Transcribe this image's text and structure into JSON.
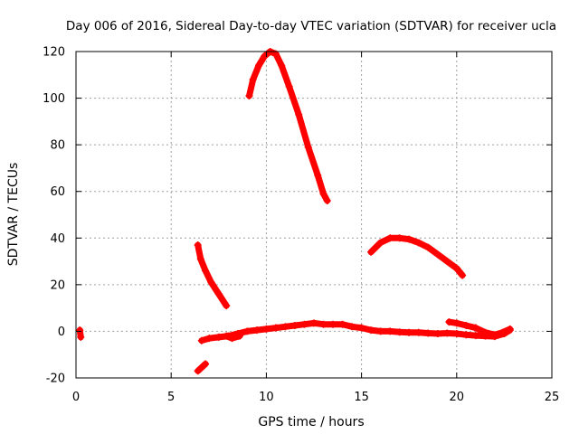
{
  "chart_data": {
    "type": "scatter",
    "title": "Day 006 of 2016, Sidereal Day-to-day VTEC variation (SDTVAR) for receiver ucla",
    "xlabel": "GPS time / hours",
    "ylabel": "SDTVAR / TECUs",
    "xlim": [
      0,
      25
    ],
    "ylim": [
      -20,
      120
    ],
    "xticks": [
      0,
      5,
      10,
      15,
      20,
      25
    ],
    "yticks": [
      -20,
      0,
      20,
      40,
      60,
      80,
      100,
      120
    ],
    "grid": true,
    "marker": "plus",
    "color": "#ff0000",
    "series": [
      {
        "x": [
          0.2,
          0.25
        ],
        "y": [
          0.5,
          -2.5
        ]
      },
      {
        "x": [
          6.4,
          6.55,
          6.8,
          7.1,
          7.5,
          7.9
        ],
        "y": [
          37,
          31,
          26,
          21,
          16,
          11
        ]
      },
      {
        "x": [
          6.4,
          6.6,
          6.8
        ],
        "y": [
          -17,
          -15.5,
          -14
        ]
      },
      {
        "x": [
          9.1,
          9.3,
          9.6,
          9.9,
          10.2,
          10.5,
          10.8,
          11.2,
          11.7,
          12.2,
          12.7,
          13.0,
          13.2
        ],
        "y": [
          101,
          108,
          114,
          118,
          120,
          119,
          114,
          105,
          93,
          79,
          67,
          59,
          56
        ]
      },
      {
        "x": [
          15.5,
          16.0,
          16.5,
          17.0,
          17.5,
          18.0,
          18.5,
          19.0,
          19.5,
          20.0,
          20.3
        ],
        "y": [
          34,
          38,
          40,
          40,
          39.5,
          38,
          36,
          33,
          30,
          27,
          24
        ]
      },
      {
        "x": [
          6.6,
          7.0,
          7.5,
          8.0,
          8.5,
          9.0,
          9.5,
          10.0,
          10.5,
          11.0,
          11.5,
          12.0,
          12.5,
          13.0,
          13.5,
          14.0,
          14.5,
          15.0,
          15.5,
          16.0,
          16.5,
          17.0,
          17.5,
          18.0,
          18.5,
          19.0,
          19.5,
          20.0,
          20.5,
          21.0,
          21.5,
          22.0,
          22.5,
          22.8
        ],
        "y": [
          -4,
          -3,
          -2.5,
          -2,
          -1,
          0,
          0.5,
          1,
          1.5,
          2,
          2.5,
          3,
          3.5,
          3,
          3,
          3,
          2,
          1.5,
          0.5,
          0,
          0,
          -0.3,
          -0.5,
          -0.5,
          -0.8,
          -1,
          -0.8,
          -1,
          -1.5,
          -1.8,
          -2,
          -2.2,
          -1,
          0.5
        ]
      },
      {
        "x": [
          7.9,
          8.2,
          8.6
        ],
        "y": [
          -2,
          -3,
          -2
        ]
      },
      {
        "x": [
          19.6,
          20.0,
          20.5,
          21.0,
          21.5,
          22.0,
          22.4,
          22.8
        ],
        "y": [
          4,
          3.5,
          2.5,
          1.5,
          -0.5,
          -1.5,
          -0.5,
          1
        ]
      }
    ]
  }
}
